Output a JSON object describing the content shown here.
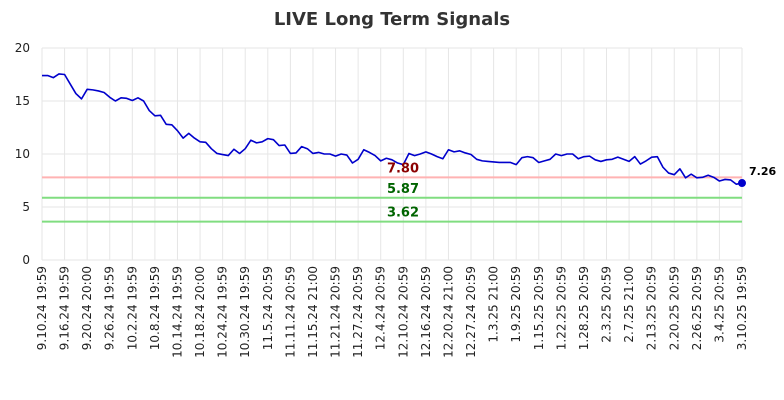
{
  "chart_data": {
    "type": "line",
    "title": "LIVE Long Term Signals",
    "xlabel": "",
    "ylabel": "",
    "ylim": [
      0,
      20
    ],
    "y_ticks": [
      "0",
      "5",
      "10",
      "15",
      "20"
    ],
    "grid": true,
    "legend": "none",
    "line_color": "#0000cc",
    "x_tick_labels": [
      "9.10.24 19:59",
      "9.16.24 19:59",
      "9.20.24 20:00",
      "9.26.24 19:59",
      "10.2.24 19:59",
      "10.8.24 19:59",
      "10.14.24 19:59",
      "10.18.24 20:00",
      "10.24.24 19:59",
      "10.30.24 19:59",
      "11.5.24 20:59",
      "11.11.24 20:59",
      "11.15.24 21:00",
      "11.21.24 20:59",
      "11.27.24 20:59",
      "12.4.24 20:59",
      "12.10.24 20:59",
      "12.16.24 20:59",
      "12.20.24 21:00",
      "12.27.24 20:59",
      "1.3.25 21:00",
      "1.9.25 20:59",
      "1.15.25 20:59",
      "1.22.25 20:59",
      "1.28.25 20:59",
      "2.3.25 20:59",
      "2.7.25 21:00",
      "2.13.25 20:59",
      "2.20.25 20:59",
      "2.26.25 20:59",
      "3.4.25 20:59",
      "3.10.25 19:59"
    ],
    "series": [
      {
        "values": [
          17.4,
          17.4,
          17.2,
          17.55,
          17.5,
          16.6,
          15.7,
          15.2,
          16.1,
          16.05,
          15.95,
          15.8,
          15.35,
          15.0,
          15.3,
          15.25,
          15.05,
          15.3,
          15.0,
          14.1,
          13.6,
          13.65,
          12.8,
          12.75,
          12.2,
          11.5,
          11.95,
          11.5,
          11.15,
          11.1,
          10.5,
          10.05,
          9.95,
          9.85,
          10.45,
          10.05,
          10.5,
          11.3,
          11.05,
          11.15,
          11.45,
          11.35,
          10.8,
          10.85,
          10.05,
          10.1,
          10.7,
          10.5,
          10.05,
          10.15,
          10.0,
          10.0,
          9.8,
          10.0,
          9.9,
          9.15,
          9.5,
          10.4,
          10.15,
          9.85,
          9.35,
          9.6,
          9.45,
          9.15,
          9.0,
          10.05,
          9.85,
          10.0,
          10.2,
          10.0,
          9.75,
          9.55,
          10.4,
          10.2,
          10.3,
          10.1,
          9.95,
          9.5,
          9.35,
          9.3,
          9.25,
          9.2,
          9.2,
          9.2,
          9.0,
          9.65,
          9.75,
          9.65,
          9.2,
          9.35,
          9.5,
          10.0,
          9.85,
          10.0,
          10.0,
          9.55,
          9.75,
          9.8,
          9.45,
          9.3,
          9.45,
          9.5,
          9.7,
          9.5,
          9.3,
          9.75,
          9.05,
          9.35,
          9.7,
          9.75,
          8.75,
          8.2,
          8.05,
          8.6,
          7.75,
          8.1,
          7.75,
          7.8,
          8.0,
          7.8,
          7.45,
          7.6,
          7.55,
          7.15,
          7.26
        ]
      }
    ],
    "horizontal_lines": [
      {
        "value": 7.8,
        "label": "7.80",
        "line_color": "#ffb3b3",
        "label_color": "#8b0000"
      },
      {
        "value": 5.87,
        "label": "5.87",
        "line_color": "#80dd80",
        "label_color": "#006400"
      },
      {
        "value": 3.62,
        "label": "3.62",
        "line_color": "#80dd80",
        "label_color": "#006400"
      }
    ],
    "last_value_label": "7.26"
  }
}
